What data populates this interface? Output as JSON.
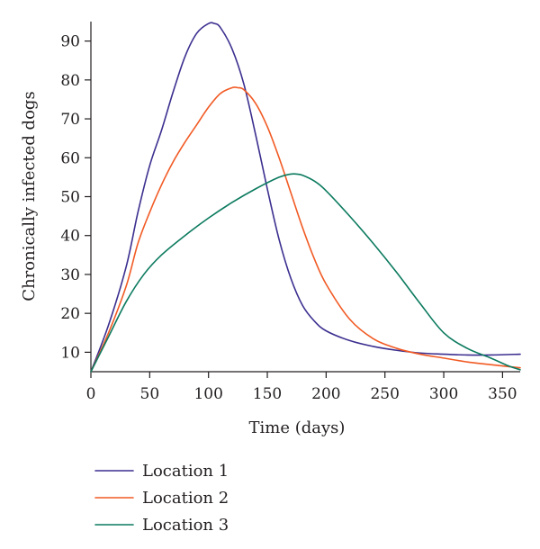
{
  "chart_data": {
    "type": "line",
    "title": "",
    "xlabel": "Time (days)",
    "ylabel": "Chronically infected dogs",
    "xlim": [
      0,
      365
    ],
    "ylim": [
      5,
      95
    ],
    "xticks": [
      0,
      50,
      100,
      150,
      200,
      250,
      300,
      350
    ],
    "yticks": [
      10,
      20,
      30,
      40,
      50,
      60,
      70,
      80,
      90
    ],
    "grid": false,
    "legend_position": "bottom",
    "series": [
      {
        "name": "Location 1",
        "color": "#3b2f8f",
        "x": [
          0,
          15,
          30,
          40,
          50,
          60,
          70,
          80,
          90,
          100,
          105,
          110,
          120,
          130,
          140,
          150,
          160,
          170,
          180,
          190,
          200,
          220,
          240,
          260,
          280,
          300,
          320,
          340,
          365
        ],
        "y": [
          5,
          17,
          32,
          46,
          58,
          67,
          77,
          86,
          92,
          94.5,
          94.5,
          93.5,
          88,
          79,
          66,
          52,
          39,
          29,
          22,
          18,
          15.5,
          13,
          11.5,
          10.5,
          9.8,
          9.5,
          9.3,
          9.3,
          9.5
        ]
      },
      {
        "name": "Location 2",
        "color": "#f15a24",
        "x": [
          0,
          15,
          30,
          40,
          50,
          60,
          70,
          80,
          90,
          100,
          110,
          120,
          125,
          130,
          140,
          150,
          160,
          170,
          180,
          190,
          200,
          220,
          240,
          260,
          280,
          300,
          320,
          340,
          365
        ],
        "y": [
          5,
          15,
          27,
          38,
          46,
          53,
          59,
          64,
          68.5,
          73,
          76.5,
          78,
          78,
          77.5,
          74,
          68,
          60,
          51,
          42,
          34,
          27.5,
          18.5,
          13.5,
          11,
          9.5,
          8.5,
          7.5,
          6.8,
          6
        ]
      },
      {
        "name": "Location 3",
        "color": "#0b7a5e",
        "x": [
          0,
          15,
          30,
          45,
          60,
          80,
          100,
          120,
          140,
          160,
          170,
          175,
          180,
          190,
          200,
          220,
          240,
          260,
          280,
          300,
          320,
          340,
          355,
          365
        ],
        "y": [
          5,
          14,
          23,
          30,
          35,
          40,
          44.5,
          48.5,
          52,
          55,
          55.8,
          55.8,
          55.5,
          54,
          51.5,
          45,
          38,
          30.5,
          22.5,
          15,
          11,
          8.5,
          6.5,
          5.5
        ]
      }
    ]
  }
}
